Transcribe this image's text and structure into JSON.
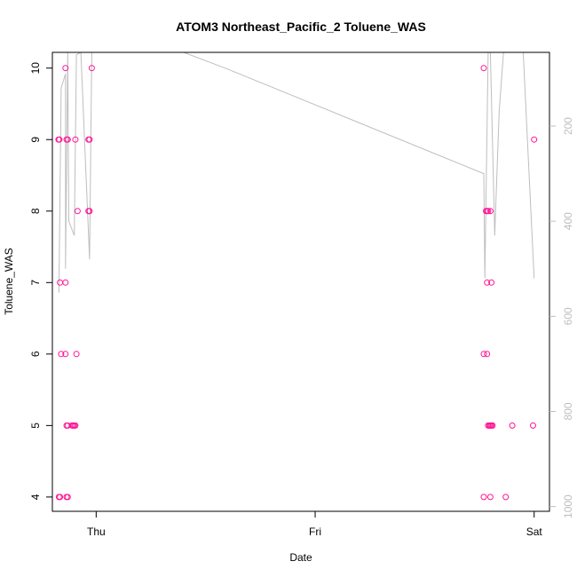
{
  "chart_data": {
    "type": "scatter",
    "title": "ATOM3 Northeast_Pacific_2 Toluene_WAS",
    "xlabel": "Date",
    "ylabel": "Toluene_WAS",
    "x_ticks": [
      {
        "label": "Thu",
        "value": 0
      },
      {
        "label": "Fri",
        "value": 1
      },
      {
        "label": "Sat",
        "value": 2
      }
    ],
    "xlim": [
      -0.2,
      2.07
    ],
    "ylim": [
      3.8,
      10.22
    ],
    "y_ticks": [
      4,
      5,
      6,
      7,
      8,
      9,
      10
    ],
    "y2_ticks": [
      200,
      400,
      600,
      800,
      1000
    ],
    "y2lim": [
      1010,
      45
    ],
    "series": [
      {
        "role": "Toluene_WAS samples",
        "color": "#ff1493",
        "points": [
          [
            -0.172,
            9
          ],
          [
            -0.168,
            9
          ],
          [
            -0.17,
            4
          ],
          [
            -0.165,
            4
          ],
          [
            -0.165,
            7
          ],
          [
            -0.16,
            6
          ],
          [
            -0.14,
            7
          ],
          [
            -0.14,
            6
          ],
          [
            -0.14,
            10
          ],
          [
            -0.135,
            9
          ],
          [
            -0.13,
            9
          ],
          [
            -0.135,
            5
          ],
          [
            -0.13,
            5
          ],
          [
            -0.135,
            4
          ],
          [
            -0.13,
            4
          ],
          [
            -0.11,
            5
          ],
          [
            -0.105,
            5
          ],
          [
            -0.1,
            5
          ],
          [
            -0.095,
            5
          ],
          [
            -0.095,
            9
          ],
          [
            -0.09,
            6
          ],
          [
            -0.085,
            8
          ],
          [
            -0.035,
            9
          ],
          [
            -0.03,
            9
          ],
          [
            -0.035,
            8
          ],
          [
            -0.03,
            8
          ],
          [
            -0.02,
            10
          ],
          [
            1.77,
            10
          ],
          [
            1.77,
            6
          ],
          [
            1.77,
            4
          ],
          [
            1.78,
            8
          ],
          [
            1.785,
            7
          ],
          [
            1.785,
            6
          ],
          [
            1.785,
            8
          ],
          [
            1.79,
            8
          ],
          [
            1.79,
            5
          ],
          [
            1.795,
            5
          ],
          [
            1.8,
            5
          ],
          [
            1.8,
            8
          ],
          [
            1.805,
            7
          ],
          [
            1.805,
            5
          ],
          [
            1.8,
            4
          ],
          [
            1.81,
            5
          ],
          [
            1.87,
            4
          ],
          [
            1.9,
            5
          ],
          [
            1.995,
            5
          ],
          [
            2.0,
            9
          ]
        ]
      },
      {
        "role": "pressure (right axis)",
        "color": "#bebebe",
        "points": [
          [
            -0.17,
            550
          ],
          [
            -0.16,
            120
          ],
          [
            -0.14,
            90
          ],
          [
            -0.14,
            500
          ],
          [
            -0.13,
            45
          ],
          [
            -0.125,
            400
          ],
          [
            -0.1,
            430
          ],
          [
            -0.09,
            50
          ],
          [
            -0.07,
            45
          ],
          [
            -0.03,
            480
          ],
          [
            -0.02,
            45
          ],
          [
            0.4,
            45
          ],
          [
            0.6,
            80
          ],
          [
            1.77,
            300
          ],
          [
            1.775,
            520
          ],
          [
            1.79,
            45
          ],
          [
            1.8,
            45
          ],
          [
            1.82,
            430
          ],
          [
            1.84,
            170
          ],
          [
            1.86,
            45
          ],
          [
            1.95,
            45
          ],
          [
            2.0,
            520
          ]
        ]
      }
    ]
  }
}
